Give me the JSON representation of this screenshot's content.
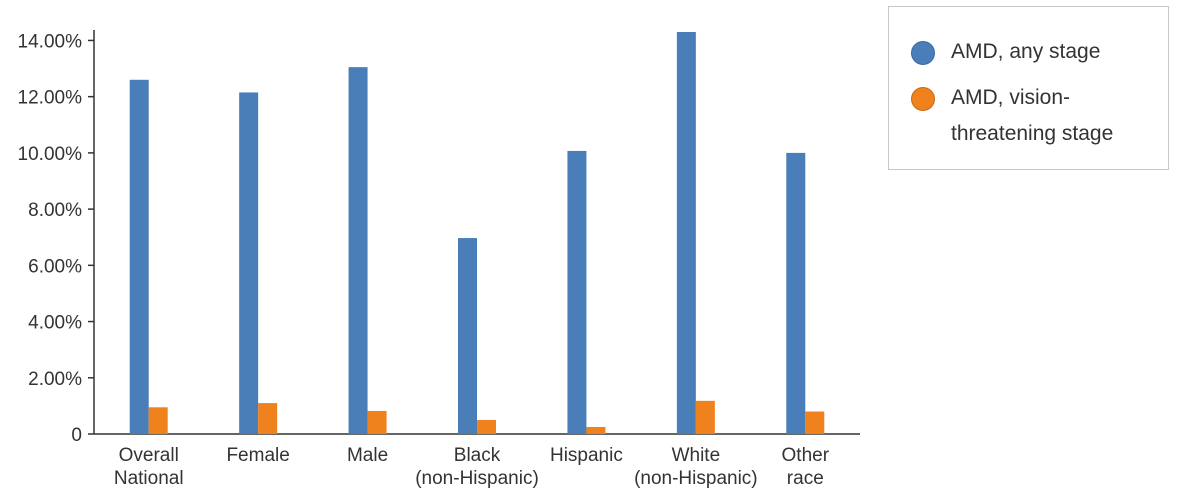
{
  "chart_data": {
    "type": "bar",
    "categories": [
      [
        "Overall",
        "National"
      ],
      [
        "Female"
      ],
      [
        "Male"
      ],
      [
        "Black",
        "(non-Hispanic)"
      ],
      [
        "Hispanic"
      ],
      [
        "White",
        "(non-Hispanic)"
      ],
      [
        "Other",
        "race"
      ]
    ],
    "series": [
      {
        "name": "AMD, any stage",
        "color": "#4a7eb8",
        "values": [
          12.6,
          12.15,
          13.05,
          6.97,
          10.07,
          14.3,
          10.0
        ]
      },
      {
        "name": "AMD, vision-threatening stage",
        "color": "#f0821e",
        "values": [
          0.95,
          1.1,
          0.82,
          0.5,
          0.25,
          1.18,
          0.8
        ]
      }
    ],
    "yticks": [
      "0",
      "2.00%",
      "4.00%",
      "6.00%",
      "8.00%",
      "10.00%",
      "12.00%",
      "14.00%"
    ],
    "ylim": [
      0,
      14.3
    ],
    "legend_position": "top-right",
    "grid": false
  },
  "legend": {
    "item1": "AMD, any stage",
    "item2_line1": "AMD, vision-",
    "item2_line2": "threatening stage"
  }
}
